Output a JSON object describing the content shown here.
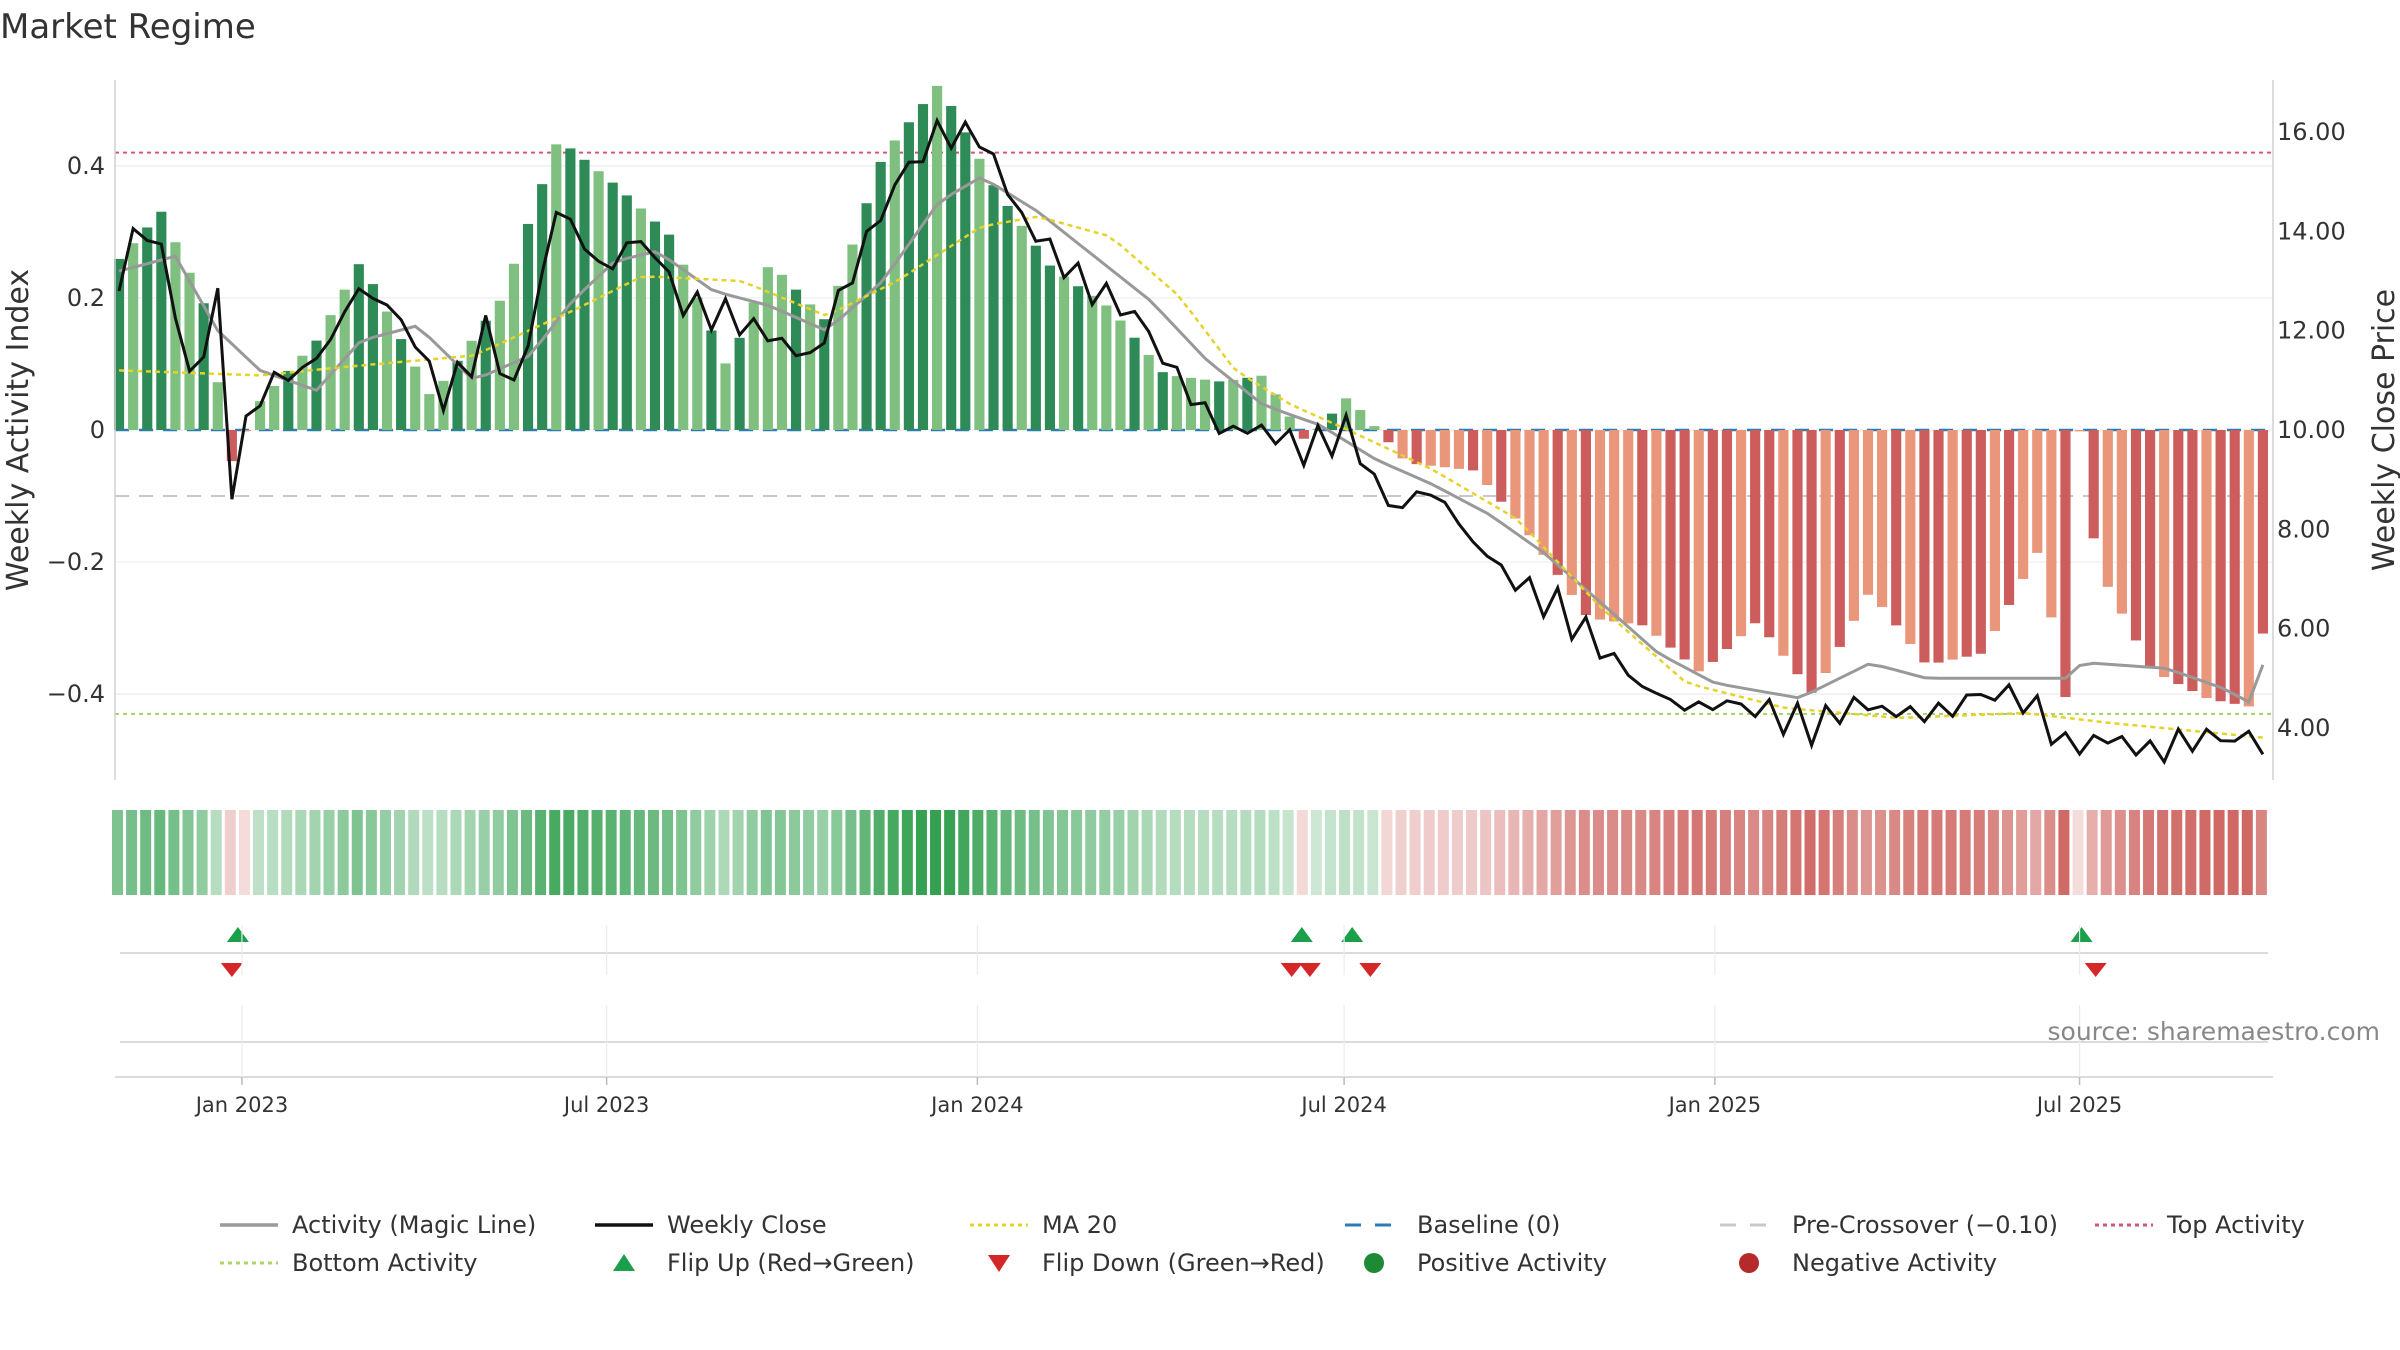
{
  "chart_data": {
    "type": "bar",
    "title": "Market Regime",
    "ylabel_left": "Weekly Activity Index",
    "ylabel_right": "Weekly Close Price",
    "source": "source: sharemaestro.com",
    "left_axis": {
      "range": [
        -0.53,
        0.53
      ],
      "ticks": [
        0.4,
        0.2,
        0,
        -0.2,
        -0.4
      ],
      "tick_labels": [
        "0.4",
        "0.2",
        "0",
        "−0.2",
        "−0.4"
      ]
    },
    "right_axis": {
      "range": [
        2.95,
        17.05
      ],
      "ticks": [
        16,
        14,
        12,
        10,
        8,
        6,
        4
      ],
      "tick_labels": [
        "16.00",
        "14.00",
        "12.00",
        "10.00",
        "8.00",
        "6.00",
        "4.00"
      ]
    },
    "x_range": [
      "2022-10-30",
      "2025-10-05"
    ],
    "x_ticks": [
      {
        "date": "2023-01-01",
        "label": "Jan 2023"
      },
      {
        "date": "2023-07-01",
        "label": "Jul 2023"
      },
      {
        "date": "2024-01-01",
        "label": "Jan 2024"
      },
      {
        "date": "2024-07-01",
        "label": "Jul 2024"
      },
      {
        "date": "2025-01-01",
        "label": "Jan 2025"
      },
      {
        "date": "2025-07-01",
        "label": "Jul 2025"
      }
    ],
    "reference_lines": {
      "top_activity": 0.42,
      "bottom_activity": -0.43,
      "baseline": 0,
      "pre_crossover": -0.1
    },
    "activity_anchors": [
      [
        "2022-11-01",
        0.24
      ],
      [
        "2022-11-22",
        0.31
      ],
      [
        "2022-12-13",
        0.17
      ],
      [
        "2022-12-27",
        -0.07
      ],
      [
        "2023-01-10",
        0.02
      ],
      [
        "2023-02-07",
        0.11
      ],
      [
        "2023-03-01",
        0.23
      ],
      [
        "2023-04-05",
        0.02
      ],
      [
        "2023-05-10",
        0.17
      ],
      [
        "2023-06-07",
        0.41
      ],
      [
        "2023-07-05",
        0.34
      ],
      [
        "2023-08-02",
        0.26
      ],
      [
        "2023-08-30",
        0.06
      ],
      [
        "2023-09-20",
        0.22
      ],
      [
        "2023-10-18",
        0.13
      ],
      [
        "2023-11-15",
        0.38
      ],
      [
        "2023-12-13",
        0.49
      ],
      [
        "2024-01-10",
        0.33
      ],
      [
        "2024-02-07",
        0.21
      ],
      [
        "2024-03-07",
        0.15
      ],
      [
        "2024-04-03",
        0.05
      ],
      [
        "2024-05-01",
        0.04
      ],
      [
        "2024-05-22",
        0.05
      ],
      [
        "2024-06-12",
        -0.05
      ],
      [
        "2024-07-03",
        0.02
      ],
      [
        "2024-08-01",
        -0.08
      ],
      [
        "2024-09-04",
        -0.09
      ],
      [
        "2024-10-02",
        -0.19
      ],
      [
        "2024-10-30",
        -0.31
      ],
      [
        "2024-11-27",
        -0.32
      ],
      [
        "2024-12-25",
        -0.39
      ],
      [
        "2025-01-22",
        -0.31
      ],
      [
        "2025-02-19",
        -0.42
      ],
      [
        "2025-03-19",
        -0.26
      ],
      [
        "2025-04-16",
        -0.37
      ],
      [
        "2025-05-14",
        -0.35
      ],
      [
        "2025-06-11",
        -0.19
      ],
      [
        "2025-06-25",
        -0.43
      ],
      [
        "2025-07-02",
        0.06
      ],
      [
        "2025-07-09",
        -0.21
      ],
      [
        "2025-08-06",
        -0.37
      ],
      [
        "2025-09-03",
        -0.41
      ],
      [
        "2025-09-24",
        -0.42
      ],
      [
        "2025-10-01",
        -0.29
      ]
    ],
    "close_anchors": [
      [
        "2022-11-01",
        12.9
      ],
      [
        "2022-11-08",
        14.0
      ],
      [
        "2022-11-22",
        13.7
      ],
      [
        "2022-12-06",
        11.0
      ],
      [
        "2022-12-20",
        12.5
      ],
      [
        "2022-12-27",
        9.0
      ],
      [
        "2023-01-10",
        10.8
      ],
      [
        "2023-02-07",
        11.4
      ],
      [
        "2023-03-01",
        12.9
      ],
      [
        "2023-03-22",
        12.2
      ],
      [
        "2023-04-12",
        10.6
      ],
      [
        "2023-05-03",
        12.0
      ],
      [
        "2023-05-17",
        10.7
      ],
      [
        "2023-06-07",
        14.6
      ],
      [
        "2023-06-28",
        13.2
      ],
      [
        "2023-07-19",
        13.9
      ],
      [
        "2023-08-09",
        12.5
      ],
      [
        "2023-08-30",
        12.3
      ],
      [
        "2023-09-20",
        11.9
      ],
      [
        "2023-10-11",
        11.4
      ],
      [
        "2023-11-01",
        13.3
      ],
      [
        "2023-11-22",
        15.0
      ],
      [
        "2023-12-13",
        16.0
      ],
      [
        "2024-01-03",
        15.9
      ],
      [
        "2024-01-24",
        14.2
      ],
      [
        "2024-02-21",
        13.0
      ],
      [
        "2024-03-20",
        12.3
      ],
      [
        "2024-04-10",
        11.0
      ],
      [
        "2024-05-01",
        10.0
      ],
      [
        "2024-05-22",
        10.0
      ],
      [
        "2024-06-12",
        9.6
      ],
      [
        "2024-07-03",
        10.0
      ],
      [
        "2024-07-24",
        8.4
      ],
      [
        "2024-08-14",
        8.8
      ],
      [
        "2024-09-04",
        7.7
      ],
      [
        "2024-09-25",
        6.9
      ],
      [
        "2024-10-16",
        6.4
      ],
      [
        "2024-11-06",
        5.6
      ],
      [
        "2024-11-27",
        4.8
      ],
      [
        "2024-12-18",
        4.4
      ],
      [
        "2025-01-08",
        4.5
      ],
      [
        "2025-01-29",
        4.3
      ],
      [
        "2025-02-19",
        4.0
      ],
      [
        "2025-03-12",
        4.5
      ],
      [
        "2025-04-02",
        4.3
      ],
      [
        "2025-04-23",
        4.3
      ],
      [
        "2025-05-14",
        4.7
      ],
      [
        "2025-06-04",
        4.6
      ],
      [
        "2025-06-25",
        3.6
      ],
      [
        "2025-07-16",
        3.8
      ],
      [
        "2025-08-06",
        3.5
      ],
      [
        "2025-08-27",
        3.8
      ],
      [
        "2025-09-17",
        3.8
      ],
      [
        "2025-10-01",
        3.7
      ]
    ],
    "magic_anchors": [
      [
        "2022-11-01",
        13.2
      ],
      [
        "2022-11-29",
        13.5
      ],
      [
        "2022-12-20",
        12.0
      ],
      [
        "2023-01-10",
        11.2
      ],
      [
        "2023-02-07",
        10.8
      ],
      [
        "2023-03-01",
        11.8
      ],
      [
        "2023-03-29",
        12.1
      ],
      [
        "2023-04-26",
        11.0
      ],
      [
        "2023-05-24",
        11.5
      ],
      [
        "2023-06-14",
        12.6
      ],
      [
        "2023-07-05",
        13.4
      ],
      [
        "2023-07-26",
        13.6
      ],
      [
        "2023-08-23",
        12.8
      ],
      [
        "2023-09-20",
        12.5
      ],
      [
        "2023-10-18",
        12.0
      ],
      [
        "2023-11-15",
        13.0
      ],
      [
        "2023-12-13",
        14.6
      ],
      [
        "2024-01-03",
        15.1
      ],
      [
        "2024-01-31",
        14.4
      ],
      [
        "2024-02-28",
        13.5
      ],
      [
        "2024-03-27",
        12.6
      ],
      [
        "2024-04-24",
        11.4
      ],
      [
        "2024-05-22",
        10.5
      ],
      [
        "2024-06-19",
        10.1
      ],
      [
        "2024-07-17",
        9.4
      ],
      [
        "2024-08-14",
        8.9
      ],
      [
        "2024-09-11",
        8.3
      ],
      [
        "2024-10-09",
        7.5
      ],
      [
        "2024-11-06",
        6.5
      ],
      [
        "2024-12-04",
        5.5
      ],
      [
        "2025-01-01",
        4.9
      ],
      [
        "2025-02-12",
        4.6
      ],
      [
        "2025-03-19",
        5.3
      ],
      [
        "2025-04-16",
        5.0
      ],
      [
        "2025-05-21",
        5.0
      ],
      [
        "2025-06-25",
        5.0
      ],
      [
        "2025-07-02",
        5.3
      ],
      [
        "2025-07-09",
        5.3
      ],
      [
        "2025-08-13",
        5.2
      ],
      [
        "2025-09-10",
        4.8
      ],
      [
        "2025-09-24",
        4.5
      ],
      [
        "2025-10-01",
        5.4
      ]
    ],
    "ma20_anchors": [
      [
        "2022-11-01",
        11.2
      ],
      [
        "2023-01-10",
        11.1
      ],
      [
        "2023-03-01",
        11.3
      ],
      [
        "2023-04-26",
        11.5
      ],
      [
        "2023-06-14",
        12.4
      ],
      [
        "2023-07-19",
        13.1
      ],
      [
        "2023-09-06",
        13.0
      ],
      [
        "2023-10-18",
        12.3
      ],
      [
        "2023-11-22",
        13.0
      ],
      [
        "2024-01-03",
        14.1
      ],
      [
        "2024-01-31",
        14.3
      ],
      [
        "2024-03-07",
        13.9
      ],
      [
        "2024-04-10",
        12.7
      ],
      [
        "2024-05-08",
        11.2
      ],
      [
        "2024-06-05",
        10.5
      ],
      [
        "2024-07-03",
        10.0
      ],
      [
        "2024-08-14",
        9.2
      ],
      [
        "2024-09-25",
        8.2
      ],
      [
        "2024-11-06",
        6.4
      ],
      [
        "2024-12-18",
        4.9
      ],
      [
        "2025-02-05",
        4.4
      ],
      [
        "2025-04-02",
        4.2
      ],
      [
        "2025-06-04",
        4.3
      ],
      [
        "2025-07-16",
        4.1
      ],
      [
        "2025-10-01",
        3.8
      ]
    ],
    "flip_up": [
      "2022-12-30",
      "2024-06-10",
      "2024-07-05",
      "2025-07-02"
    ],
    "flip_down": [
      "2022-12-27",
      "2024-06-05",
      "2024-06-14",
      "2024-07-14",
      "2025-07-09"
    ],
    "legend": [
      {
        "label": "Activity (Magic Line)",
        "style": "line",
        "color": "#999999"
      },
      {
        "label": "Weekly Close",
        "style": "line",
        "color": "#111111"
      },
      {
        "label": "MA 20",
        "style": "dotted",
        "color": "#e6d22a"
      },
      {
        "label": "Baseline (0)",
        "style": "dashed",
        "color": "#2f7bb5"
      },
      {
        "label": "Pre-Crossover (−0.10)",
        "style": "dashed",
        "color": "#c8c8c8"
      },
      {
        "label": "Top Activity",
        "style": "dotted",
        "color": "#d6537a"
      },
      {
        "label": "Bottom Activity",
        "style": "dotted",
        "color": "#a9d468"
      },
      {
        "label": "Flip Up (Red→Green)",
        "style": "triangle-up",
        "color": "#1a9f4a"
      },
      {
        "label": "Flip Down (Green→Red)",
        "style": "triangle-down",
        "color": "#d62728"
      },
      {
        "label": "Positive Activity",
        "style": "circle",
        "color": "#1d8a35"
      },
      {
        "label": "Negative Activity",
        "style": "circle",
        "color": "#b52a2a"
      }
    ],
    "colors": {
      "pos_dark": "#2e8b57",
      "pos_light": "#7fbf7f",
      "neg_dark": "#cd5c5c",
      "neg_light": "#e9967a",
      "close": "#111111",
      "magic": "#999999",
      "ma20": "#e6d22a",
      "baseline": "#2f7bb5",
      "precross": "#c8c8c8",
      "top": "#d6537a",
      "bottom": "#a9d468",
      "flip_up": "#1a9f4a",
      "flip_down": "#d62728"
    }
  }
}
